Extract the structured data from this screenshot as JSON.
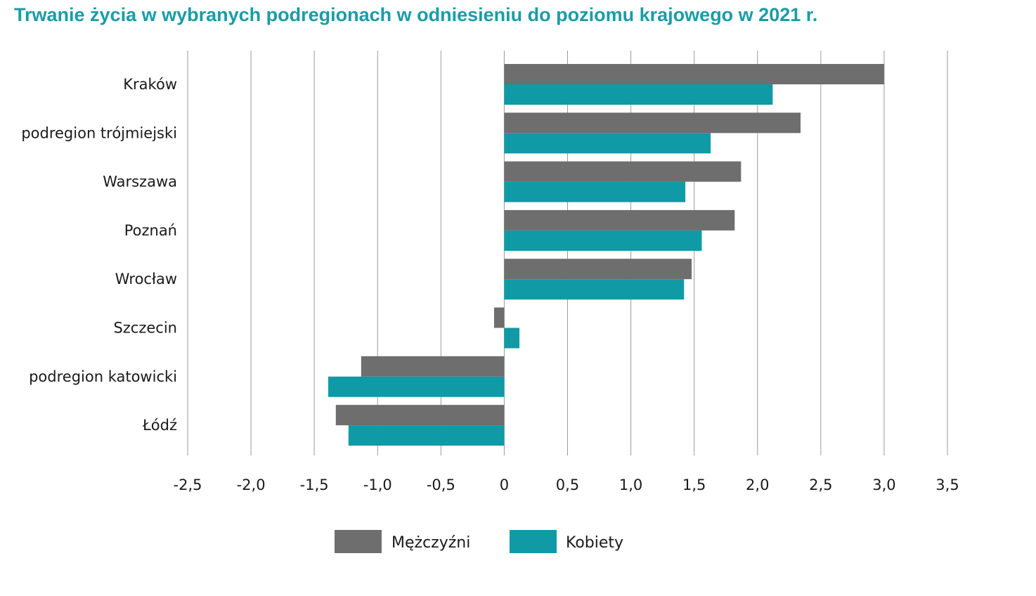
{
  "title": "Trwanie życia w wybranych podregionach w odniesieniu do poziomu krajowego w 2021 r.",
  "colors": {
    "men": "#6e6e6e",
    "women": "#0f9aa6",
    "grid": "#9a9a9a",
    "title": "#1a9ca6"
  },
  "chart_data": {
    "type": "bar",
    "orientation": "horizontal",
    "title": "Trwanie życia w wybranych podregionach w odniesieniu do poziomu krajowego w 2021 r.",
    "categories": [
      "Kraków",
      "podregion trójmiejski",
      "Warszawa",
      "Poznań",
      "Wrocław",
      "Szczecin",
      "podregion katowicki",
      "Łódź"
    ],
    "series": [
      {
        "name": "Mężczyźni",
        "color": "#6e6e6e",
        "values": [
          3.0,
          2.34,
          1.87,
          1.82,
          1.48,
          -0.08,
          -1.13,
          -1.33
        ]
      },
      {
        "name": "Kobiety",
        "color": "#0f9aa6",
        "values": [
          2.12,
          1.63,
          1.43,
          1.56,
          1.42,
          0.12,
          -1.39,
          -1.23
        ]
      }
    ],
    "xlim": [
      -2.5,
      3.5
    ],
    "xticks": [
      "-2,5",
      "-2,0",
      "-1,5",
      "-1,0",
      "-0,5",
      "0",
      "0,5",
      "1,0",
      "1,5",
      "2,0",
      "2,5",
      "3,0",
      "3,5"
    ],
    "grid": "vertical",
    "legend_position": "bottom"
  }
}
